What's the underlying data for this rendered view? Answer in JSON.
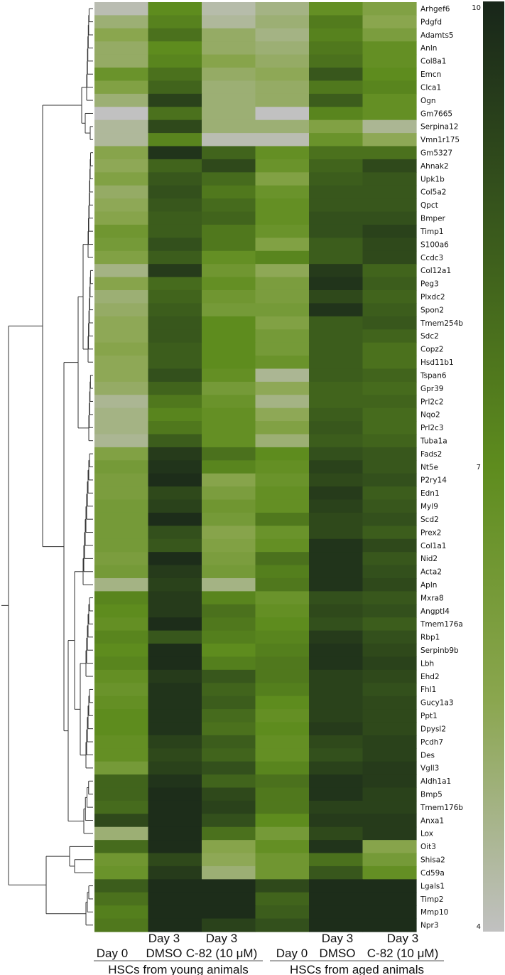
{
  "chart_data": {
    "type": "heatmap",
    "title": "",
    "color_scale": {
      "min": 4,
      "mid": 7,
      "max": 10,
      "min_label": "4",
      "mid_label": "7",
      "max_label": "10",
      "stops": [
        {
          "value": 4,
          "color": "#c1c1c1"
        },
        {
          "value": 5.5,
          "color": "#8aa64e"
        },
        {
          "value": 7,
          "color": "#5e8c1e"
        },
        {
          "value": 8.5,
          "color": "#3a5a1c"
        },
        {
          "value": 10,
          "color": "#18261a"
        }
      ]
    },
    "columns": [
      {
        "line1": "Day 0",
        "line2": ""
      },
      {
        "line1": "Day 3",
        "line2": "DMSO"
      },
      {
        "line1": "Day 3",
        "line2": "C-82 (10 μM)"
      },
      {
        "line1": "Day 0",
        "line2": ""
      },
      {
        "line1": "Day 3",
        "line2": "DMSO"
      },
      {
        "line1": "Day 3",
        "line2": "C-82 (10 μM)"
      }
    ],
    "groups": [
      {
        "label": "HSCs from young animals",
        "columns": [
          0,
          1,
          2
        ]
      },
      {
        "label": "HSCs from aged animals",
        "columns": [
          3,
          4,
          5
        ]
      }
    ],
    "rows": [
      {
        "gene": "Arhgef6",
        "values": [
          4.2,
          7.0,
          4.3,
          4.8,
          6.8,
          5.8
        ]
      },
      {
        "gene": "Pdgfd",
        "values": [
          5.0,
          7.3,
          4.5,
          5.0,
          7.5,
          5.5
        ]
      },
      {
        "gene": "Adamts5",
        "values": [
          5.5,
          7.8,
          5.2,
          4.8,
          7.3,
          6.0
        ]
      },
      {
        "gene": "Anln",
        "values": [
          5.2,
          7.0,
          5.2,
          5.0,
          7.6,
          6.8
        ]
      },
      {
        "gene": "Col8a1",
        "values": [
          5.2,
          7.2,
          5.6,
          5.2,
          7.8,
          6.8
        ]
      },
      {
        "gene": "Emcn",
        "values": [
          6.6,
          7.8,
          5.2,
          5.4,
          8.6,
          7.0
        ]
      },
      {
        "gene": "Clca1",
        "values": [
          5.8,
          8.2,
          5.0,
          5.2,
          7.6,
          7.2
        ]
      },
      {
        "gene": "Ogn",
        "values": [
          5.0,
          9.2,
          5.0,
          5.2,
          8.4,
          6.8
        ]
      },
      {
        "gene": "Gm7665",
        "values": [
          4.0,
          7.8,
          5.0,
          4.0,
          7.2,
          6.8
        ]
      },
      {
        "gene": "Serpina12",
        "values": [
          4.5,
          9.0,
          5.0,
          5.0,
          5.8,
          4.6
        ]
      },
      {
        "gene": "Vmn1r175",
        "values": [
          4.5,
          7.2,
          4.2,
          4.2,
          6.6,
          5.4
        ]
      },
      {
        "gene": "Gm5327",
        "values": [
          5.6,
          9.6,
          8.2,
          6.8,
          7.8,
          7.8
        ]
      },
      {
        "gene": "Ahnak2",
        "values": [
          5.4,
          8.2,
          9.0,
          6.6,
          8.2,
          9.0
        ]
      },
      {
        "gene": "Upk1b",
        "values": [
          5.8,
          8.6,
          8.0,
          5.8,
          8.4,
          8.6
        ]
      },
      {
        "gene": "Col5a2",
        "values": [
          5.2,
          8.8,
          7.6,
          6.6,
          8.6,
          8.6
        ]
      },
      {
        "gene": "Qpct",
        "values": [
          5.4,
          8.6,
          8.0,
          6.8,
          8.6,
          8.6
        ]
      },
      {
        "gene": "Bmper",
        "values": [
          5.6,
          8.4,
          8.2,
          6.8,
          8.8,
          8.8
        ]
      },
      {
        "gene": "Timp1",
        "values": [
          6.4,
          8.4,
          7.6,
          6.6,
          8.8,
          9.2
        ]
      },
      {
        "gene": "S100a6",
        "values": [
          6.2,
          8.8,
          7.6,
          5.8,
          8.4,
          9.0
        ]
      },
      {
        "gene": "Ccdc3",
        "values": [
          5.8,
          8.4,
          6.8,
          7.2,
          8.4,
          9.0
        ]
      },
      {
        "gene": "Col12a1",
        "values": [
          4.8,
          9.4,
          6.4,
          5.4,
          9.4,
          8.2
        ]
      },
      {
        "gene": "Peg3",
        "values": [
          5.6,
          8.0,
          6.8,
          6.0,
          9.6,
          8.4
        ]
      },
      {
        "gene": "Plxdc2",
        "values": [
          5.0,
          8.2,
          6.4,
          6.0,
          9.0,
          8.2
        ]
      },
      {
        "gene": "Spon2",
        "values": [
          5.2,
          8.4,
          6.2,
          6.2,
          9.6,
          8.4
        ]
      },
      {
        "gene": "Tmem254b",
        "values": [
          5.4,
          8.6,
          7.0,
          5.8,
          8.4,
          8.6
        ]
      },
      {
        "gene": "Sdc2",
        "values": [
          5.4,
          8.6,
          7.0,
          6.2,
          8.4,
          8.2
        ]
      },
      {
        "gene": "Copz2",
        "values": [
          5.6,
          8.4,
          7.0,
          6.2,
          8.4,
          7.8
        ]
      },
      {
        "gene": "Hsd11b1",
        "values": [
          5.4,
          8.4,
          7.0,
          6.6,
          8.4,
          7.8
        ]
      },
      {
        "gene": "Tspan6",
        "values": [
          5.4,
          8.8,
          6.8,
          4.6,
          8.4,
          8.2
        ]
      },
      {
        "gene": "Gpr39",
        "values": [
          5.2,
          8.2,
          6.2,
          5.4,
          8.2,
          8.0
        ]
      },
      {
        "gene": "Prl2c2",
        "values": [
          4.6,
          7.6,
          6.6,
          4.8,
          8.2,
          8.2
        ]
      },
      {
        "gene": "Nqo2",
        "values": [
          4.8,
          7.2,
          6.8,
          5.4,
          8.4,
          8.0
        ]
      },
      {
        "gene": "Prl2c3",
        "values": [
          4.8,
          7.6,
          6.8,
          5.8,
          8.6,
          8.0
        ]
      },
      {
        "gene": "Tuba1a",
        "values": [
          4.6,
          8.4,
          6.8,
          5.0,
          8.4,
          8.2
        ]
      },
      {
        "gene": "Fads2",
        "values": [
          5.8,
          9.4,
          7.8,
          7.0,
          8.8,
          8.6
        ]
      },
      {
        "gene": "Nt5e",
        "values": [
          6.2,
          9.6,
          7.2,
          6.8,
          9.2,
          8.6
        ]
      },
      {
        "gene": "P2ry14",
        "values": [
          6.0,
          9.8,
          5.6,
          6.6,
          9.0,
          8.8
        ]
      },
      {
        "gene": "Edn1",
        "values": [
          6.0,
          9.0,
          6.0,
          6.8,
          9.4,
          8.4
        ]
      },
      {
        "gene": "Myl9",
        "values": [
          6.2,
          9.2,
          6.4,
          6.8,
          9.2,
          8.6
        ]
      },
      {
        "gene": "Scd2",
        "values": [
          6.2,
          9.8,
          6.2,
          7.6,
          9.0,
          8.8
        ]
      },
      {
        "gene": "Prex2",
        "values": [
          6.2,
          8.8,
          5.6,
          6.6,
          9.0,
          8.4
        ]
      },
      {
        "gene": "Col1a1",
        "values": [
          6.2,
          8.6,
          5.8,
          6.8,
          9.6,
          9.0
        ]
      },
      {
        "gene": "Nid2",
        "values": [
          6.0,
          9.8,
          6.0,
          7.8,
          9.6,
          8.6
        ]
      },
      {
        "gene": "Acta2",
        "values": [
          6.2,
          9.4,
          6.2,
          7.4,
          9.6,
          8.8
        ]
      },
      {
        "gene": "Apln",
        "values": [
          4.8,
          9.2,
          4.8,
          7.6,
          9.6,
          9.0
        ]
      },
      {
        "gene": "Mxra8",
        "values": [
          7.2,
          9.4,
          7.2,
          6.6,
          8.8,
          8.6
        ]
      },
      {
        "gene": "Angptl4",
        "values": [
          7.0,
          9.4,
          7.8,
          6.8,
          9.0,
          8.8
        ]
      },
      {
        "gene": "Tmem176a",
        "values": [
          6.8,
          9.8,
          7.6,
          7.0,
          8.8,
          8.4
        ]
      },
      {
        "gene": "Rbp1",
        "values": [
          7.2,
          8.6,
          7.4,
          7.2,
          9.4,
          8.8
        ]
      },
      {
        "gene": "Serpinb9b",
        "values": [
          7.0,
          9.8,
          7.0,
          7.4,
          9.6,
          9.0
        ]
      },
      {
        "gene": "Lbh",
        "values": [
          7.2,
          9.8,
          7.4,
          7.6,
          9.6,
          9.2
        ]
      },
      {
        "gene": "Ehd2",
        "values": [
          6.8,
          9.4,
          8.6,
          7.6,
          9.2,
          9.0
        ]
      },
      {
        "gene": "Fhl1",
        "values": [
          6.6,
          9.6,
          8.2,
          7.4,
          9.2,
          8.8
        ]
      },
      {
        "gene": "Gucy1a3",
        "values": [
          6.8,
          9.6,
          8.4,
          7.0,
          9.2,
          9.0
        ]
      },
      {
        "gene": "Ppt1",
        "values": [
          7.0,
          9.6,
          8.0,
          6.8,
          9.2,
          9.0
        ]
      },
      {
        "gene": "Dpysl2",
        "values": [
          7.0,
          9.6,
          7.8,
          7.0,
          9.4,
          9.0
        ]
      },
      {
        "gene": "Pcdh7",
        "values": [
          6.8,
          9.2,
          8.4,
          6.8,
          9.0,
          9.2
        ]
      },
      {
        "gene": "Des",
        "values": [
          6.8,
          9.0,
          8.2,
          6.8,
          8.8,
          9.2
        ]
      },
      {
        "gene": "Vgll3",
        "values": [
          6.2,
          9.2,
          8.8,
          7.2,
          9.2,
          9.4
        ]
      },
      {
        "gene": "Aldh1a1",
        "values": [
          8.2,
          9.6,
          8.2,
          7.8,
          9.6,
          9.4
        ]
      },
      {
        "gene": "Bmp5",
        "values": [
          8.2,
          9.8,
          9.0,
          7.6,
          9.6,
          9.2
        ]
      },
      {
        "gene": "Tmem176b",
        "values": [
          8.0,
          9.8,
          9.2,
          7.6,
          9.2,
          9.2
        ]
      },
      {
        "gene": "Anxa1",
        "values": [
          9.0,
          9.8,
          8.8,
          7.0,
          9.4,
          9.4
        ]
      },
      {
        "gene": "Lox",
        "values": [
          5.0,
          9.8,
          7.8,
          6.2,
          9.0,
          9.4
        ]
      },
      {
        "gene": "Oit3",
        "values": [
          8.0,
          9.8,
          5.6,
          6.8,
          9.6,
          5.6
        ]
      },
      {
        "gene": "Shisa2",
        "values": [
          6.4,
          9.0,
          5.4,
          6.4,
          7.8,
          6.2
        ]
      },
      {
        "gene": "Cd59a",
        "values": [
          6.6,
          9.4,
          5.0,
          6.4,
          8.6,
          6.8
        ]
      },
      {
        "gene": "Lgals1",
        "values": [
          8.4,
          9.8,
          9.8,
          9.0,
          9.8,
          9.8
        ]
      },
      {
        "gene": "Timp2",
        "values": [
          7.8,
          9.8,
          9.8,
          8.2,
          9.8,
          9.8
        ]
      },
      {
        "gene": "Mmp10",
        "values": [
          7.4,
          9.8,
          9.8,
          8.4,
          9.8,
          9.8
        ]
      },
      {
        "gene": "Npr3",
        "values": [
          7.6,
          9.8,
          9.2,
          8.8,
          9.8,
          9.8
        ]
      }
    ],
    "dendrogram": "row",
    "legend_position": "right",
    "grid": false
  }
}
